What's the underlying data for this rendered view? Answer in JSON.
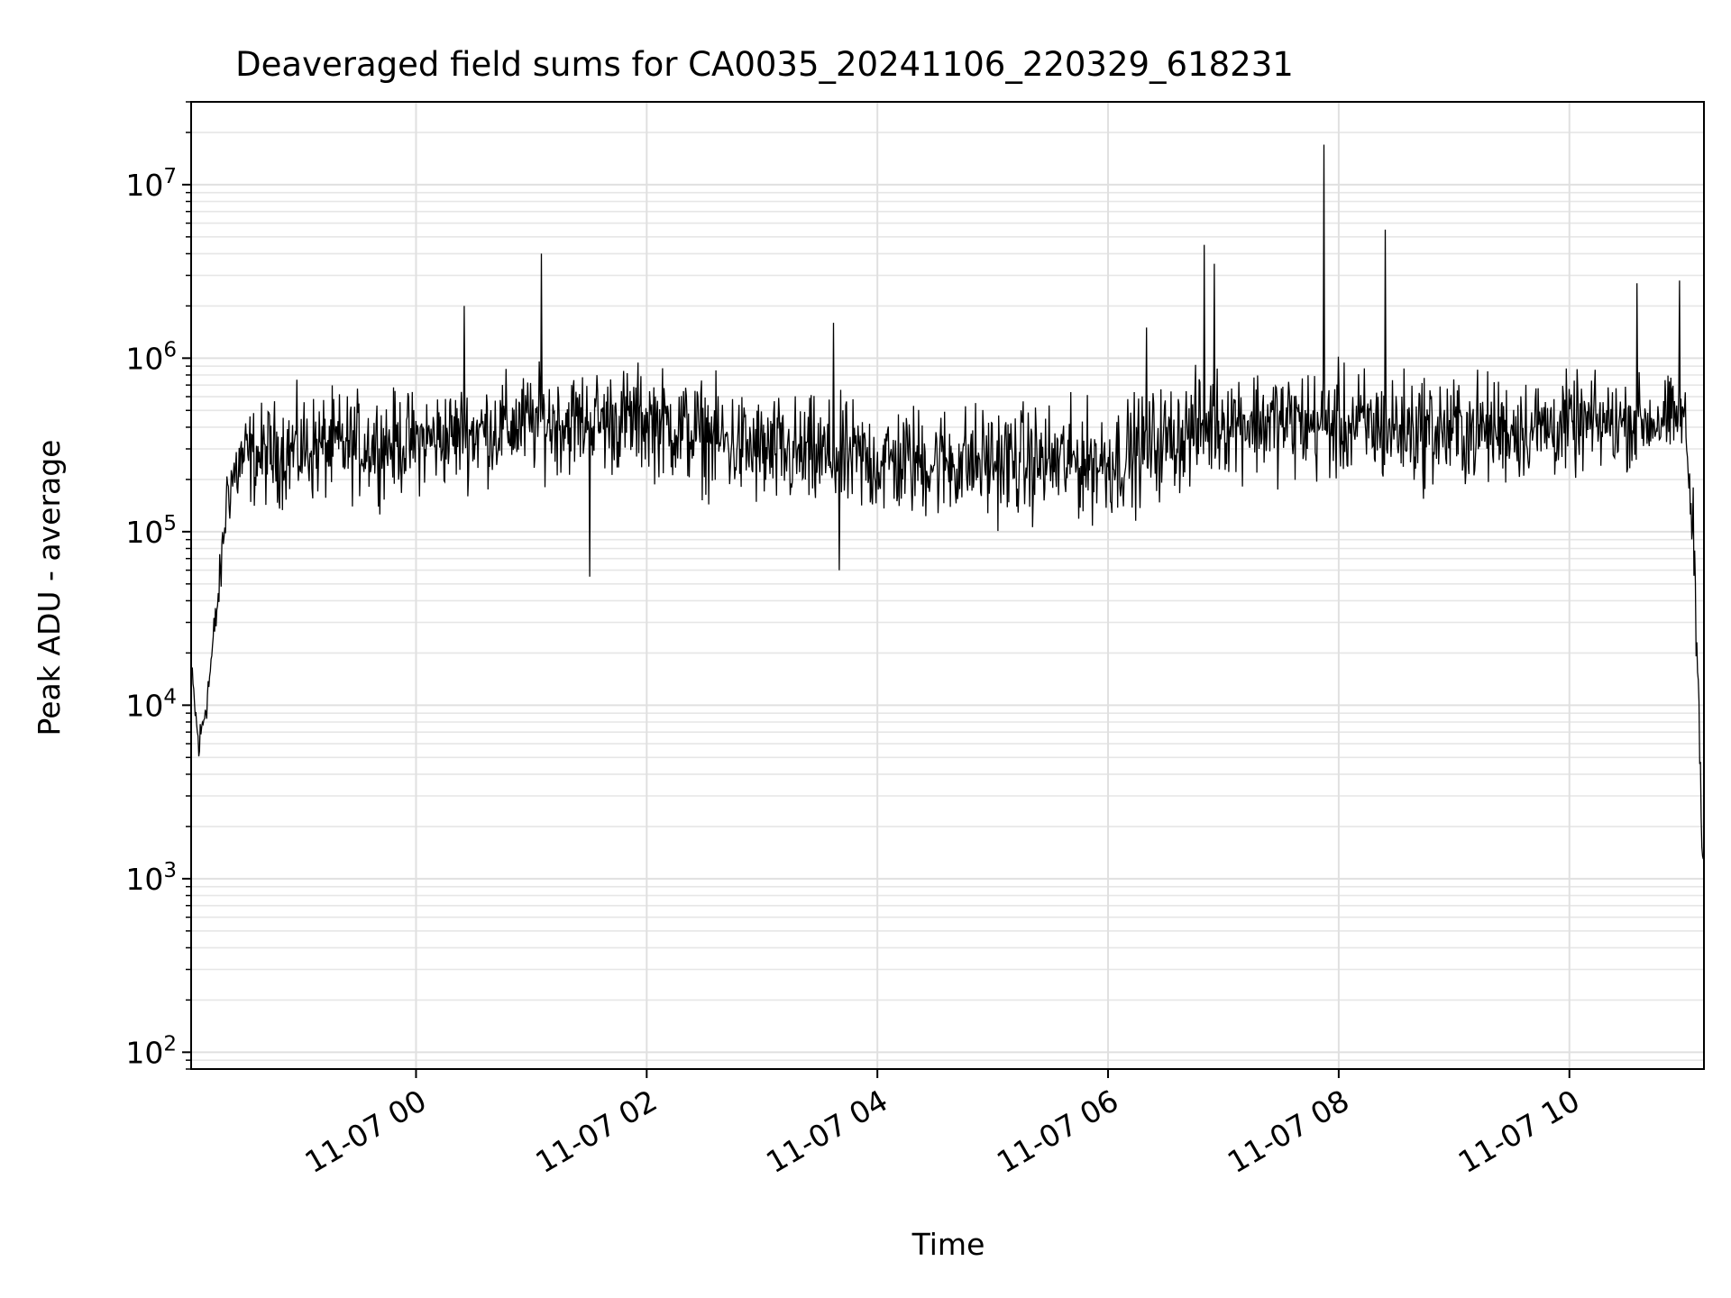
{
  "chart_data": {
    "type": "line",
    "title": "Deaveraged field sums for CA0035_20241106_220329_618231",
    "xlabel": "Time",
    "ylabel": "Peak ADU - average",
    "y_scale": "log",
    "ylim": [
      80,
      30000000
    ],
    "xlim": [
      "2024-11-06 22:03",
      "2024-11-07 11:10"
    ],
    "grid": "major and minor",
    "line_color": "#000000",
    "x_ticks": [
      {
        "t": "2024-11-07 00:00",
        "label": "11-07 00"
      },
      {
        "t": "2024-11-07 02:00",
        "label": "11-07 02"
      },
      {
        "t": "2024-11-07 04:00",
        "label": "11-07 04"
      },
      {
        "t": "2024-11-07 06:00",
        "label": "11-07 06"
      },
      {
        "t": "2024-11-07 08:00",
        "label": "11-07 08"
      },
      {
        "t": "2024-11-07 10:00",
        "label": "11-07 10"
      }
    ],
    "y_ticks": [
      {
        "value": 100,
        "base": "10",
        "exp": "2"
      },
      {
        "value": 1000,
        "base": "10",
        "exp": "3"
      },
      {
        "value": 10000,
        "base": "10",
        "exp": "4"
      },
      {
        "value": 100000,
        "base": "10",
        "exp": "5"
      },
      {
        "value": 1000000,
        "base": "10",
        "exp": "6"
      },
      {
        "value": 10000000,
        "base": "10",
        "exp": "7"
      }
    ],
    "series": [
      {
        "envelope": [
          {
            "t": "2024-11-06 22:03",
            "low": 12000,
            "high": 22000
          },
          {
            "t": "2024-11-06 22:07",
            "low": 3500,
            "high": 9000
          },
          {
            "t": "2024-11-06 22:12",
            "low": 8000,
            "high": 20000
          },
          {
            "t": "2024-11-06 22:18",
            "low": 30000,
            "high": 90000
          },
          {
            "t": "2024-11-06 22:22",
            "low": 80000,
            "high": 400000
          },
          {
            "t": "2024-11-06 22:30",
            "low": 100000,
            "high": 700000
          },
          {
            "t": "2024-11-06 23:00",
            "low": 100000,
            "high": 900000
          },
          {
            "t": "2024-11-07 00:00",
            "low": 120000,
            "high": 900000
          },
          {
            "t": "2024-11-07 01:00",
            "low": 150000,
            "high": 1200000
          },
          {
            "t": "2024-11-07 02:00",
            "low": 150000,
            "high": 1300000
          },
          {
            "t": "2024-11-07 03:00",
            "low": 90000,
            "high": 900000
          },
          {
            "t": "2024-11-07 04:00",
            "low": 80000,
            "high": 800000
          },
          {
            "t": "2024-11-07 05:00",
            "low": 80000,
            "high": 800000
          },
          {
            "t": "2024-11-07 06:00",
            "low": 80000,
            "high": 800000
          },
          {
            "t": "2024-11-07 07:00",
            "low": 150000,
            "high": 1300000
          },
          {
            "t": "2024-11-07 08:00",
            "low": 130000,
            "high": 1300000
          },
          {
            "t": "2024-11-07 09:00",
            "low": 120000,
            "high": 1200000
          },
          {
            "t": "2024-11-07 10:00",
            "low": 150000,
            "high": 1100000
          },
          {
            "t": "2024-11-07 11:00",
            "low": 200000,
            "high": 1000000
          },
          {
            "t": "2024-11-07 11:05",
            "low": 30000,
            "high": 200000
          },
          {
            "t": "2024-11-07 11:08",
            "low": 3000,
            "high": 8000
          },
          {
            "t": "2024-11-07 11:10",
            "low": 500,
            "high": 1500
          }
        ],
        "spikes": [
          {
            "t": "2024-11-07 00:25",
            "value": 2000000
          },
          {
            "t": "2024-11-07 01:05",
            "value": 4000000
          },
          {
            "t": "2024-11-07 01:30",
            "value": 55000
          },
          {
            "t": "2024-11-07 03:37",
            "value": 1600000
          },
          {
            "t": "2024-11-07 03:40",
            "value": 60000
          },
          {
            "t": "2024-11-07 06:20",
            "value": 1500000
          },
          {
            "t": "2024-11-07 06:50",
            "value": 4500000
          },
          {
            "t": "2024-11-07 06:55",
            "value": 3500000
          },
          {
            "t": "2024-11-07 07:52",
            "value": 17000000
          },
          {
            "t": "2024-11-07 08:24",
            "value": 5500000
          },
          {
            "t": "2024-11-07 10:35",
            "value": 2700000
          },
          {
            "t": "2024-11-07 10:57",
            "value": 2800000
          }
        ]
      }
    ]
  }
}
